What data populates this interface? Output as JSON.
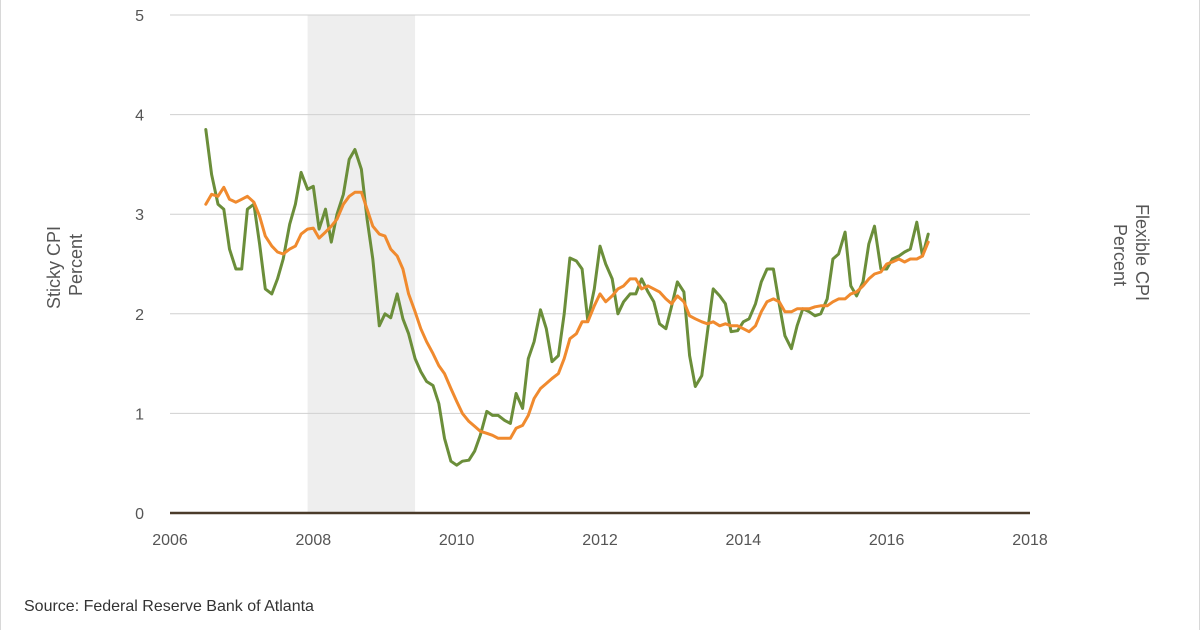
{
  "source_text": "Source: Federal Reserve Bank of Atlanta",
  "chart_data": {
    "type": "line",
    "y_left_label": [
      "Sticky CPI",
      "Percent"
    ],
    "y_right_label": [
      "Flexible CPI",
      "Percent"
    ],
    "xlim": [
      2006,
      2018
    ],
    "ylim": [
      0,
      5
    ],
    "x_ticks": [
      "2006",
      "2008",
      "2010",
      "2012",
      "2014",
      "2016",
      "2018"
    ],
    "y_ticks": [
      "0",
      "1",
      "2",
      "3",
      "4",
      "5"
    ],
    "grid": true,
    "recession_band": [
      2007.92,
      2009.42
    ],
    "colors": {
      "green": "#6b8e3a",
      "orange": "#f08a2e",
      "band": "#eeeeee",
      "grid": "#d0d0d0",
      "baseline": "#4a3b2a"
    },
    "series": [
      {
        "color": "green",
        "x": [
          2006.5,
          2006.58,
          2006.67,
          2006.75,
          2006.83,
          2006.92,
          2007.0,
          2007.08,
          2007.17,
          2007.25,
          2007.33,
          2007.42,
          2007.5,
          2007.58,
          2007.67,
          2007.75,
          2007.83,
          2007.92,
          2008.0,
          2008.08,
          2008.17,
          2008.25,
          2008.33,
          2008.42,
          2008.5,
          2008.58,
          2008.67,
          2008.75,
          2008.83,
          2008.92,
          2009.0,
          2009.08,
          2009.17,
          2009.25,
          2009.33,
          2009.42,
          2009.5,
          2009.58,
          2009.67,
          2009.75,
          2009.83,
          2009.92,
          2010.0,
          2010.08,
          2010.17,
          2010.25,
          2010.33,
          2010.42,
          2010.5,
          2010.58,
          2010.67,
          2010.75,
          2010.83,
          2010.92,
          2011.0,
          2011.08,
          2011.17,
          2011.25,
          2011.33,
          2011.42,
          2011.5,
          2011.58,
          2011.67,
          2011.75,
          2011.83,
          2011.92,
          2012.0,
          2012.08,
          2012.17,
          2012.25,
          2012.33,
          2012.42,
          2012.5,
          2012.58,
          2012.67,
          2012.75,
          2012.83,
          2012.92,
          2013.0,
          2013.08,
          2013.17,
          2013.25,
          2013.33,
          2013.42,
          2013.5,
          2013.58,
          2013.67,
          2013.75,
          2013.83,
          2013.92,
          2014.0,
          2014.08,
          2014.17,
          2014.25,
          2014.33,
          2014.42,
          2014.5,
          2014.58,
          2014.67,
          2014.75,
          2014.83,
          2014.92,
          2015.0,
          2015.08,
          2015.17,
          2015.25,
          2015.33,
          2015.42,
          2015.5,
          2015.58,
          2015.67,
          2015.75,
          2015.83,
          2015.92,
          2016.0,
          2016.08,
          2016.17,
          2016.25,
          2016.33,
          2016.42,
          2016.5,
          2016.58
        ],
        "y": [
          3.85,
          3.4,
          3.1,
          3.05,
          2.65,
          2.45,
          2.45,
          3.05,
          3.1,
          2.7,
          2.25,
          2.2,
          2.35,
          2.55,
          2.9,
          3.1,
          3.42,
          3.25,
          3.28,
          2.85,
          3.05,
          2.72,
          3.0,
          3.2,
          3.55,
          3.65,
          3.45,
          2.95,
          2.55,
          1.88,
          2.0,
          1.96,
          2.2,
          1.95,
          1.8,
          1.55,
          1.42,
          1.32,
          1.28,
          1.1,
          0.75,
          0.52,
          0.48,
          0.52,
          0.53,
          0.62,
          0.78,
          1.02,
          0.98,
          0.98,
          0.93,
          0.9,
          1.2,
          1.05,
          1.55,
          1.72,
          2.04,
          1.85,
          1.52,
          1.58,
          2.0,
          2.56,
          2.53,
          2.45,
          1.93,
          2.25,
          2.68,
          2.5,
          2.35,
          2.0,
          2.12,
          2.2,
          2.2,
          2.35,
          2.22,
          2.12,
          1.9,
          1.85,
          2.08,
          2.32,
          2.22,
          1.58,
          1.27,
          1.38,
          1.82,
          2.25,
          2.18,
          2.1,
          1.82,
          1.83,
          1.92,
          1.95,
          2.1,
          2.32,
          2.45,
          2.45,
          2.1,
          1.78,
          1.65,
          1.88,
          2.05,
          2.02,
          1.98,
          2.0,
          2.15,
          2.55,
          2.6,
          2.82,
          2.28,
          2.18,
          2.32,
          2.7,
          2.88,
          2.45,
          2.45,
          2.55,
          2.58,
          2.62,
          2.65,
          2.92,
          2.58,
          2.8
        ]
      },
      {
        "color": "orange",
        "x": [
          2006.5,
          2006.58,
          2006.67,
          2006.75,
          2006.83,
          2006.92,
          2007.0,
          2007.08,
          2007.17,
          2007.25,
          2007.33,
          2007.42,
          2007.5,
          2007.58,
          2007.67,
          2007.75,
          2007.83,
          2007.92,
          2008.0,
          2008.08,
          2008.17,
          2008.25,
          2008.33,
          2008.42,
          2008.5,
          2008.58,
          2008.67,
          2008.75,
          2008.83,
          2008.92,
          2009.0,
          2009.08,
          2009.17,
          2009.25,
          2009.33,
          2009.42,
          2009.5,
          2009.58,
          2009.67,
          2009.75,
          2009.83,
          2009.92,
          2010.0,
          2010.08,
          2010.17,
          2010.25,
          2010.33,
          2010.42,
          2010.5,
          2010.58,
          2010.67,
          2010.75,
          2010.83,
          2010.92,
          2011.0,
          2011.08,
          2011.17,
          2011.25,
          2011.33,
          2011.42,
          2011.5,
          2011.58,
          2011.67,
          2011.75,
          2011.83,
          2011.92,
          2012.0,
          2012.08,
          2012.17,
          2012.25,
          2012.33,
          2012.42,
          2012.5,
          2012.58,
          2012.67,
          2012.75,
          2012.83,
          2012.92,
          2013.0,
          2013.08,
          2013.17,
          2013.25,
          2013.33,
          2013.42,
          2013.5,
          2013.58,
          2013.67,
          2013.75,
          2013.83,
          2013.92,
          2014.0,
          2014.08,
          2014.17,
          2014.25,
          2014.33,
          2014.42,
          2014.5,
          2014.58,
          2014.67,
          2014.75,
          2014.83,
          2014.92,
          2015.0,
          2015.08,
          2015.17,
          2015.25,
          2015.33,
          2015.42,
          2015.5,
          2015.58,
          2015.67,
          2015.75,
          2015.83,
          2015.92,
          2016.0,
          2016.08,
          2016.17,
          2016.25,
          2016.33,
          2016.42,
          2016.5,
          2016.58
        ],
        "y": [
          3.1,
          3.2,
          3.18,
          3.27,
          3.15,
          3.12,
          3.15,
          3.18,
          3.12,
          2.98,
          2.78,
          2.68,
          2.62,
          2.6,
          2.65,
          2.68,
          2.8,
          2.85,
          2.86,
          2.76,
          2.82,
          2.88,
          2.95,
          3.1,
          3.18,
          3.22,
          3.22,
          3.05,
          2.88,
          2.8,
          2.78,
          2.65,
          2.58,
          2.45,
          2.2,
          2.02,
          1.85,
          1.72,
          1.6,
          1.48,
          1.4,
          1.25,
          1.12,
          1.0,
          0.92,
          0.87,
          0.82,
          0.8,
          0.78,
          0.75,
          0.75,
          0.75,
          0.85,
          0.88,
          0.98,
          1.15,
          1.25,
          1.3,
          1.35,
          1.4,
          1.55,
          1.75,
          1.8,
          1.92,
          1.92,
          2.08,
          2.2,
          2.12,
          2.18,
          2.25,
          2.28,
          2.35,
          2.35,
          2.25,
          2.28,
          2.25,
          2.22,
          2.15,
          2.1,
          2.18,
          2.12,
          1.98,
          1.95,
          1.92,
          1.9,
          1.92,
          1.88,
          1.9,
          1.88,
          1.88,
          1.85,
          1.82,
          1.88,
          2.02,
          2.12,
          2.15,
          2.12,
          2.02,
          2.02,
          2.05,
          2.05,
          2.05,
          2.07,
          2.08,
          2.08,
          2.12,
          2.15,
          2.15,
          2.2,
          2.22,
          2.28,
          2.35,
          2.4,
          2.42,
          2.5,
          2.52,
          2.55,
          2.52,
          2.55,
          2.55,
          2.58,
          2.72
        ]
      }
    ]
  }
}
